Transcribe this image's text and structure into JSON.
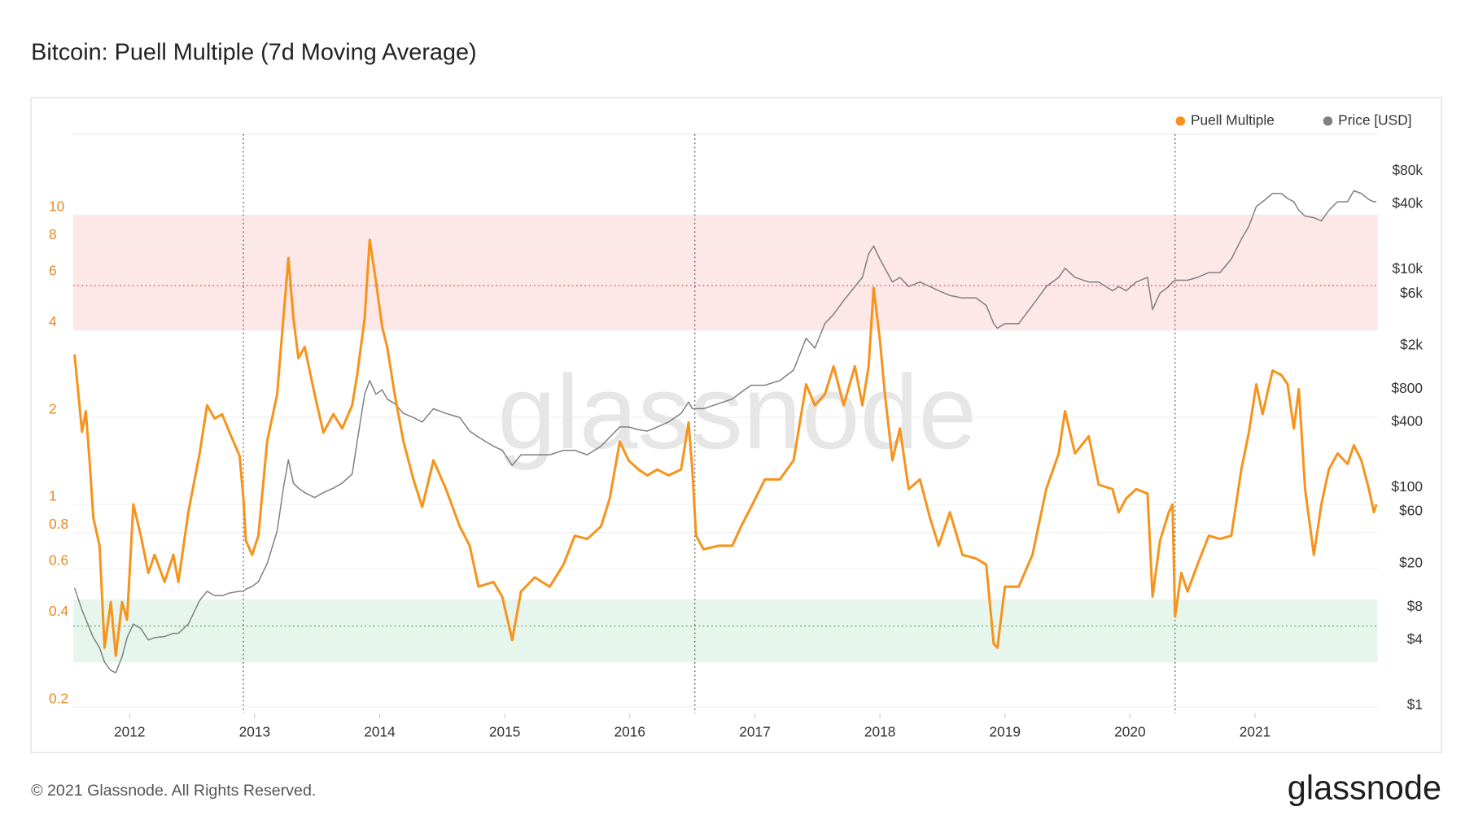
{
  "chart_data": {
    "type": "line",
    "title": "Bitcoin: Puell Multiple (7d Moving Average)",
    "footer": "© 2021 Glassnode. All Rights Reserved.",
    "brand": "glassnode",
    "watermark": "glassnode",
    "legend": "top-right",
    "log_scale": true,
    "grid": true,
    "xlim": [
      2011.55,
      2021.98
    ],
    "xticks": [
      2012,
      2013,
      2014,
      2015,
      2016,
      2017,
      2018,
      2019,
      2020,
      2021
    ],
    "ylim": [
      0.19,
      19
    ],
    "yticks": [
      0.2,
      0.4,
      0.6,
      0.8,
      1,
      2,
      4,
      6,
      8,
      10
    ],
    "y2lim": [
      0.85,
      175000
    ],
    "y2ticks": [
      {
        "value": 1,
        "label": "$1"
      },
      {
        "value": 4,
        "label": "$4"
      },
      {
        "value": 8,
        "label": "$8"
      },
      {
        "value": 20,
        "label": "$20"
      },
      {
        "value": 60,
        "label": "$60"
      },
      {
        "value": 100,
        "label": "$100"
      },
      {
        "value": 400,
        "label": "$400"
      },
      {
        "value": 800,
        "label": "$800"
      },
      {
        "value": 2000,
        "label": "$2k"
      },
      {
        "value": 6000,
        "label": "$6k"
      },
      {
        "value": 10000,
        "label": "$10k"
      },
      {
        "value": 40000,
        "label": "$40k"
      },
      {
        "value": 80000,
        "label": "$80k"
      }
    ],
    "bands": [
      {
        "range": [
          4,
          10
        ],
        "color": "#fde7e7",
        "line": 5.7,
        "line_color": "#e05555"
      },
      {
        "range": [
          0.285,
          0.47
        ],
        "color": "#e6f6ec",
        "line": 0.38,
        "line_color": "#5aa86a"
      }
    ],
    "vlines": [
      2012.91,
      2016.52,
      2020.36
    ],
    "x": [
      2011.56,
      2011.62,
      2011.65,
      2011.68,
      2011.71,
      2011.76,
      2011.8,
      2011.85,
      2011.89,
      2011.94,
      2011.98,
      2012.03,
      2012.09,
      2012.15,
      2012.2,
      2012.28,
      2012.35,
      2012.39,
      2012.47,
      2012.56,
      2012.62,
      2012.68,
      2012.74,
      2012.8,
      2012.88,
      2012.91,
      2012.93,
      2012.98,
      2013.03,
      2013.1,
      2013.18,
      2013.23,
      2013.27,
      2013.31,
      2013.35,
      2013.4,
      2013.48,
      2013.55,
      2013.63,
      2013.7,
      2013.78,
      2013.82,
      2013.88,
      2013.92,
      2013.97,
      2014.02,
      2014.06,
      2014.12,
      2014.19,
      2014.27,
      2014.34,
      2014.43,
      2014.53,
      2014.64,
      2014.72,
      2014.79,
      2014.91,
      2014.98,
      2015.06,
      2015.13,
      2015.24,
      2015.36,
      2015.47,
      2015.56,
      2015.66,
      2015.77,
      2015.84,
      2015.92,
      2015.99,
      2016.07,
      2016.14,
      2016.22,
      2016.31,
      2016.41,
      2016.47,
      2016.5,
      2016.53,
      2016.59,
      2016.71,
      2016.82,
      2016.89,
      2016.97,
      2017.08,
      2017.2,
      2017.31,
      2017.41,
      2017.48,
      2017.56,
      2017.63,
      2017.71,
      2017.8,
      2017.86,
      2017.91,
      2017.95,
      2018.0,
      2018.04,
      2018.1,
      2018.16,
      2018.23,
      2018.32,
      2018.4,
      2018.47,
      2018.56,
      2018.66,
      2018.77,
      2018.85,
      2018.91,
      2018.94,
      2019.0,
      2019.11,
      2019.22,
      2019.33,
      2019.43,
      2019.48,
      2019.56,
      2019.67,
      2019.75,
      2019.86,
      2019.91,
      2019.97,
      2020.05,
      2020.14,
      2020.18,
      2020.24,
      2020.31,
      2020.34,
      2020.36,
      2020.41,
      2020.46,
      2020.54,
      2020.63,
      2020.72,
      2020.81,
      2020.89,
      2020.95,
      2021.01,
      2021.06,
      2021.14,
      2021.21,
      2021.26,
      2021.31,
      2021.35,
      2021.4,
      2021.47,
      2021.53,
      2021.59,
      2021.66,
      2021.74,
      2021.79,
      2021.85,
      2021.91,
      2021.95,
      2021.97
    ],
    "series": [
      {
        "name": "Puell Multiple",
        "color": "#f7931a",
        "axis": "y",
        "values": [
          3.3,
          1.78,
          2.1,
          1.42,
          0.9,
          0.72,
          0.32,
          0.46,
          0.3,
          0.46,
          0.4,
          1.0,
          0.78,
          0.58,
          0.67,
          0.54,
          0.67,
          0.54,
          0.94,
          1.5,
          2.2,
          1.98,
          2.05,
          1.77,
          1.47,
          1.05,
          0.75,
          0.67,
          0.78,
          1.65,
          2.4,
          4.4,
          7.1,
          4.4,
          3.2,
          3.5,
          2.4,
          1.77,
          2.05,
          1.83,
          2.2,
          2.8,
          4.4,
          8.2,
          5.9,
          4.1,
          3.5,
          2.4,
          1.65,
          1.22,
          0.98,
          1.42,
          1.13,
          0.84,
          0.72,
          0.52,
          0.54,
          0.48,
          0.34,
          0.5,
          0.56,
          0.52,
          0.62,
          0.78,
          0.76,
          0.84,
          1.05,
          1.65,
          1.42,
          1.32,
          1.26,
          1.32,
          1.26,
          1.32,
          1.92,
          1.32,
          0.78,
          0.7,
          0.72,
          0.72,
          0.84,
          0.98,
          1.22,
          1.22,
          1.42,
          2.6,
          2.2,
          2.4,
          3.0,
          2.2,
          3.0,
          2.2,
          3.0,
          5.6,
          3.7,
          2.4,
          1.42,
          1.83,
          1.13,
          1.22,
          0.9,
          0.72,
          0.94,
          0.67,
          0.65,
          0.62,
          0.33,
          0.32,
          0.52,
          0.52,
          0.67,
          1.13,
          1.5,
          2.1,
          1.5,
          1.72,
          1.17,
          1.13,
          0.94,
          1.05,
          1.13,
          1.09,
          0.48,
          0.75,
          0.94,
          1.0,
          0.41,
          0.58,
          0.5,
          0.62,
          0.78,
          0.76,
          0.78,
          1.32,
          1.77,
          2.6,
          2.05,
          2.9,
          2.8,
          2.6,
          1.83,
          2.5,
          1.13,
          0.67,
          1.0,
          1.32,
          1.5,
          1.38,
          1.6,
          1.42,
          1.13,
          0.94,
          1.0
        ]
      },
      {
        "name": "Price [USD]",
        "color": "#808080",
        "axis": "y2",
        "values": [
          12,
          7.5,
          6.2,
          5.1,
          4.2,
          3.4,
          2.5,
          2.1,
          2.0,
          2.8,
          4.2,
          5.6,
          5.1,
          4.0,
          4.2,
          4.3,
          4.6,
          4.6,
          5.6,
          9.2,
          11.2,
          10.2,
          10.2,
          10.8,
          11.2,
          11.2,
          11.7,
          12.4,
          13.7,
          20,
          40,
          99,
          180,
          110,
          99,
          90,
          81,
          90,
          99,
          110,
          133,
          265,
          720,
          960,
          720,
          790,
          650,
          590,
          480,
          440,
          400,
          530,
          480,
          440,
          330,
          290,
          240,
          220,
          160,
          200,
          200,
          200,
          220,
          220,
          200,
          240,
          290,
          360,
          360,
          340,
          330,
          360,
          400,
          480,
          610,
          530,
          530,
          530,
          590,
          650,
          750,
          870,
          870,
          960,
          1200,
          2350,
          1900,
          3200,
          3900,
          5200,
          7000,
          8500,
          14000,
          16500,
          12500,
          10300,
          7700,
          8500,
          7000,
          7700,
          7000,
          6400,
          5800,
          5500,
          5500,
          4700,
          3200,
          2900,
          3200,
          3200,
          4700,
          7000,
          8500,
          10300,
          8500,
          7700,
          7700,
          6400,
          7000,
          6400,
          7700,
          8500,
          4300,
          6100,
          7000,
          7700,
          8000,
          8000,
          8000,
          8500,
          9400,
          9400,
          12500,
          19000,
          25000,
          38000,
          42000,
          50000,
          50000,
          45000,
          42000,
          35000,
          31000,
          30000,
          28000,
          35000,
          42000,
          42000,
          53000,
          50000,
          44000,
          42000,
          42000
        ]
      }
    ]
  }
}
